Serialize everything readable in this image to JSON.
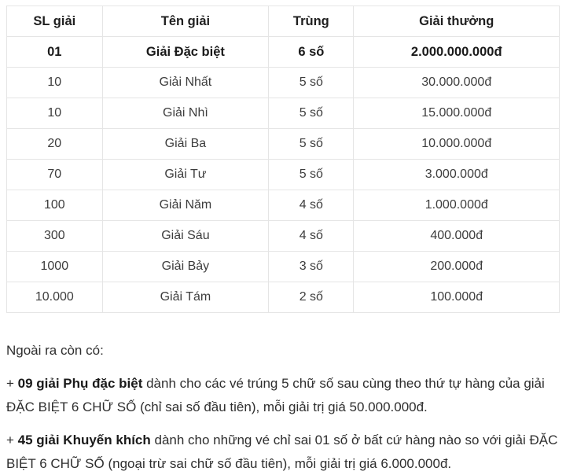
{
  "table": {
    "headers": [
      "SL giải",
      "Tên giải",
      "Trùng",
      "Giải thưởng"
    ],
    "rows": [
      {
        "sl": "01",
        "ten": "Giải Đặc biệt",
        "trung": "6 số",
        "thuong": "2.000.000.000đ",
        "bold": true
      },
      {
        "sl": "10",
        "ten": "Giải Nhất",
        "trung": "5 số",
        "thuong": "30.000.000đ",
        "bold": false
      },
      {
        "sl": "10",
        "ten": "Giải Nhì",
        "trung": "5 số",
        "thuong": "15.000.000đ",
        "bold": false
      },
      {
        "sl": "20",
        "ten": "Giải Ba",
        "trung": "5 số",
        "thuong": "10.000.000đ",
        "bold": false
      },
      {
        "sl": "70",
        "ten": "Giải Tư",
        "trung": "5 số",
        "thuong": "3.000.000đ",
        "bold": false
      },
      {
        "sl": "100",
        "ten": "Giải Năm",
        "trung": "4 số",
        "thuong": "1.000.000đ",
        "bold": false
      },
      {
        "sl": "300",
        "ten": "Giải Sáu",
        "trung": "4 số",
        "thuong": "400.000đ",
        "bold": false
      },
      {
        "sl": "1000",
        "ten": "Giải Bảy",
        "trung": "3 số",
        "thuong": "200.000đ",
        "bold": false
      },
      {
        "sl": "10.000",
        "ten": "Giải Tám",
        "trung": "2 số",
        "thuong": "100.000đ",
        "bold": false
      }
    ]
  },
  "notes": {
    "intro": "Ngoài ra còn có:",
    "paragraphs": [
      {
        "prefix": "+ ",
        "bold": "09 giải Phụ đặc biệt",
        "rest": " dành cho các vé trúng 5 chữ số sau cùng theo thứ tự hàng của giải ĐẶC BIỆT 6 CHỮ SỐ (chỉ sai số đầu tiên), mỗi giải trị giá 50.000.000đ."
      },
      {
        "prefix": "+ ",
        "bold": "45 giải Khuyến khích",
        "rest": " dành cho những vé chỉ sai 01 số ở bất cứ hàng nào so với giải ĐẶC BIỆT 6 CHỮ SỐ (ngoại trừ sai chữ số đầu tiên), mỗi giải trị giá 6.000.000đ."
      }
    ]
  },
  "colors": {
    "border": "#e5e5e5",
    "text": "#3d3d3d",
    "bold_text": "#1a1a1a",
    "background": "#ffffff"
  }
}
